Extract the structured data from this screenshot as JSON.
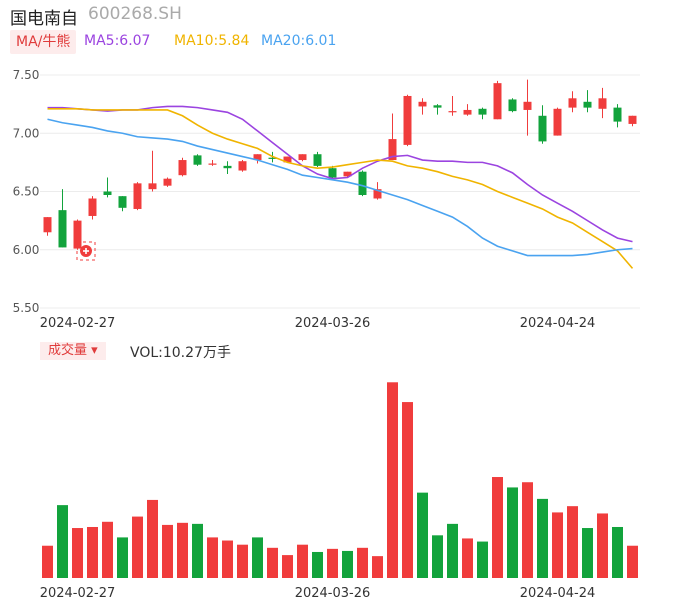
{
  "header": {
    "name": "国电南自",
    "code": "600268.SH"
  },
  "ma_toggle_label": "MA/牛熊",
  "ma_lines": [
    {
      "label": "MA5:6.07",
      "color": "#9b44e0"
    },
    {
      "label": "MA10:5.84",
      "color": "#f0b400"
    },
    {
      "label": "MA20:6.01",
      "color": "#4aa3f0"
    }
  ],
  "volume": {
    "toggle_label": "成交量 ▾",
    "readout": "VOL:10.27万手"
  },
  "colors": {
    "up": "#f03c3c",
    "down": "#12a33c"
  },
  "chart_data": [
    {
      "type": "candlestick",
      "y_ticks": [
        "7.50",
        "7.00",
        "6.50",
        "6.00",
        "5.50"
      ],
      "ylim": [
        5.5,
        7.5
      ],
      "x_tick_labels": [
        {
          "index": 2,
          "label": "2024-02-27"
        },
        {
          "index": 19,
          "label": "2024-03-26"
        },
        {
          "index": 34,
          "label": "2024-04-24"
        }
      ],
      "candles": [
        {
          "o": 6.15,
          "c": 6.28,
          "h": 6.28,
          "l": 6.12
        },
        {
          "o": 6.34,
          "c": 6.02,
          "h": 6.52,
          "l": 6.02
        },
        {
          "o": 6.01,
          "c": 6.25,
          "h": 6.26,
          "l": 6.0
        },
        {
          "o": 6.29,
          "c": 6.44,
          "h": 6.46,
          "l": 6.26
        },
        {
          "o": 6.5,
          "c": 6.47,
          "h": 6.62,
          "l": 6.45
        },
        {
          "o": 6.46,
          "c": 6.36,
          "h": 6.46,
          "l": 6.33
        },
        {
          "o": 6.35,
          "c": 6.57,
          "h": 6.58,
          "l": 6.34
        },
        {
          "o": 6.52,
          "c": 6.57,
          "h": 6.85,
          "l": 6.5
        },
        {
          "o": 6.55,
          "c": 6.61,
          "h": 6.62,
          "l": 6.54
        },
        {
          "o": 6.64,
          "c": 6.77,
          "h": 6.79,
          "l": 6.63
        },
        {
          "o": 6.81,
          "c": 6.73,
          "h": 6.82,
          "l": 6.72
        },
        {
          "o": 6.74,
          "c": 6.74,
          "h": 6.77,
          "l": 6.72
        },
        {
          "o": 6.72,
          "c": 6.7,
          "h": 6.76,
          "l": 6.65
        },
        {
          "o": 6.68,
          "c": 6.76,
          "h": 6.77,
          "l": 6.67
        },
        {
          "o": 6.77,
          "c": 6.82,
          "h": 6.82,
          "l": 6.74
        },
        {
          "o": 6.79,
          "c": 6.78,
          "h": 6.84,
          "l": 6.75
        },
        {
          "o": 6.75,
          "c": 6.8,
          "h": 6.8,
          "l": 6.75
        },
        {
          "o": 6.77,
          "c": 6.82,
          "h": 6.82,
          "l": 6.76
        },
        {
          "o": 6.82,
          "c": 6.72,
          "h": 6.84,
          "l": 6.71
        },
        {
          "o": 6.7,
          "c": 6.62,
          "h": 6.72,
          "l": 6.6
        },
        {
          "o": 6.63,
          "c": 6.67,
          "h": 6.67,
          "l": 6.62
        },
        {
          "o": 6.67,
          "c": 6.47,
          "h": 6.68,
          "l": 6.46
        },
        {
          "o": 6.44,
          "c": 6.52,
          "h": 6.58,
          "l": 6.43
        },
        {
          "o": 6.77,
          "c": 6.95,
          "h": 7.17,
          "l": 6.77
        },
        {
          "o": 6.9,
          "c": 7.32,
          "h": 7.33,
          "l": 6.89
        },
        {
          "o": 7.23,
          "c": 7.27,
          "h": 7.3,
          "l": 7.16
        },
        {
          "o": 7.24,
          "c": 7.22,
          "h": 7.25,
          "l": 7.16
        },
        {
          "o": 7.19,
          "c": 7.19,
          "h": 7.32,
          "l": 7.15
        },
        {
          "o": 7.16,
          "c": 7.2,
          "h": 7.25,
          "l": 7.15
        },
        {
          "o": 7.21,
          "c": 7.16,
          "h": 7.22,
          "l": 7.12
        },
        {
          "o": 7.12,
          "c": 7.43,
          "h": 7.45,
          "l": 7.12
        },
        {
          "o": 7.29,
          "c": 7.19,
          "h": 7.3,
          "l": 7.18
        },
        {
          "o": 7.2,
          "c": 7.27,
          "h": 7.46,
          "l": 6.98
        },
        {
          "o": 7.15,
          "c": 6.93,
          "h": 7.24,
          "l": 6.91
        },
        {
          "o": 6.98,
          "c": 7.21,
          "h": 7.22,
          "l": 6.98
        },
        {
          "o": 7.22,
          "c": 7.3,
          "h": 7.36,
          "l": 7.18
        },
        {
          "o": 7.27,
          "c": 7.22,
          "h": 7.37,
          "l": 7.18
        },
        {
          "o": 7.21,
          "c": 7.3,
          "h": 7.39,
          "l": 7.13
        },
        {
          "o": 7.22,
          "c": 7.1,
          "h": 7.25,
          "l": 7.05
        },
        {
          "o": 7.08,
          "c": 7.15,
          "h": 7.15,
          "l": 7.06
        }
      ],
      "ma5": [
        7.22,
        7.22,
        7.21,
        7.2,
        7.19,
        7.2,
        7.2,
        7.22,
        7.23,
        7.23,
        7.22,
        7.2,
        7.18,
        7.12,
        7.02,
        6.92,
        6.82,
        6.72,
        6.65,
        6.61,
        6.62,
        6.7,
        6.76,
        6.8,
        6.81,
        6.77,
        6.76,
        6.76,
        6.75,
        6.75,
        6.72,
        6.66,
        6.56,
        6.47,
        6.4,
        6.33,
        6.25,
        6.17,
        6.1,
        6.07
      ],
      "ma10": [
        7.21,
        7.21,
        7.21,
        7.2,
        7.2,
        7.2,
        7.2,
        7.2,
        7.2,
        7.15,
        7.07,
        7.0,
        6.95,
        6.91,
        6.87,
        6.8,
        6.75,
        6.72,
        6.7,
        6.71,
        6.73,
        6.75,
        6.77,
        6.76,
        6.72,
        6.7,
        6.67,
        6.63,
        6.6,
        6.56,
        6.5,
        6.45,
        6.4,
        6.35,
        6.28,
        6.23,
        6.15,
        6.07,
        5.99,
        5.84
      ],
      "ma20": [
        7.12,
        7.09,
        7.07,
        7.05,
        7.02,
        7.0,
        6.97,
        6.96,
        6.95,
        6.93,
        6.89,
        6.86,
        6.83,
        6.8,
        6.77,
        6.73,
        6.69,
        6.64,
        6.62,
        6.6,
        6.58,
        6.55,
        6.51,
        6.47,
        6.43,
        6.38,
        6.33,
        6.28,
        6.2,
        6.1,
        6.03,
        5.99,
        5.95,
        5.95,
        5.95,
        5.95,
        5.96,
        5.98,
        6.0,
        6.01
      ]
    },
    {
      "type": "bar",
      "title": "成交量",
      "values": [
        3.1,
        7.0,
        4.8,
        4.9,
        5.4,
        3.9,
        5.9,
        7.5,
        5.1,
        5.3,
        5.2,
        3.9,
        3.6,
        3.2,
        3.9,
        2.9,
        2.2,
        3.2,
        2.5,
        2.8,
        2.6,
        2.9,
        2.1,
        18.8,
        16.9,
        8.2,
        4.1,
        5.2,
        3.8,
        3.5,
        9.7,
        8.7,
        9.2,
        7.6,
        6.3,
        6.9,
        4.8,
        6.2,
        4.9,
        3.1
      ],
      "up": [
        1,
        0,
        1,
        1,
        1,
        0,
        1,
        1,
        1,
        1,
        0,
        1,
        1,
        1,
        0,
        1,
        1,
        1,
        0,
        1,
        0,
        1,
        1,
        1,
        1,
        0,
        0,
        0,
        1,
        0,
        1,
        0,
        1,
        0,
        1,
        1,
        0,
        1,
        0,
        1
      ]
    }
  ]
}
